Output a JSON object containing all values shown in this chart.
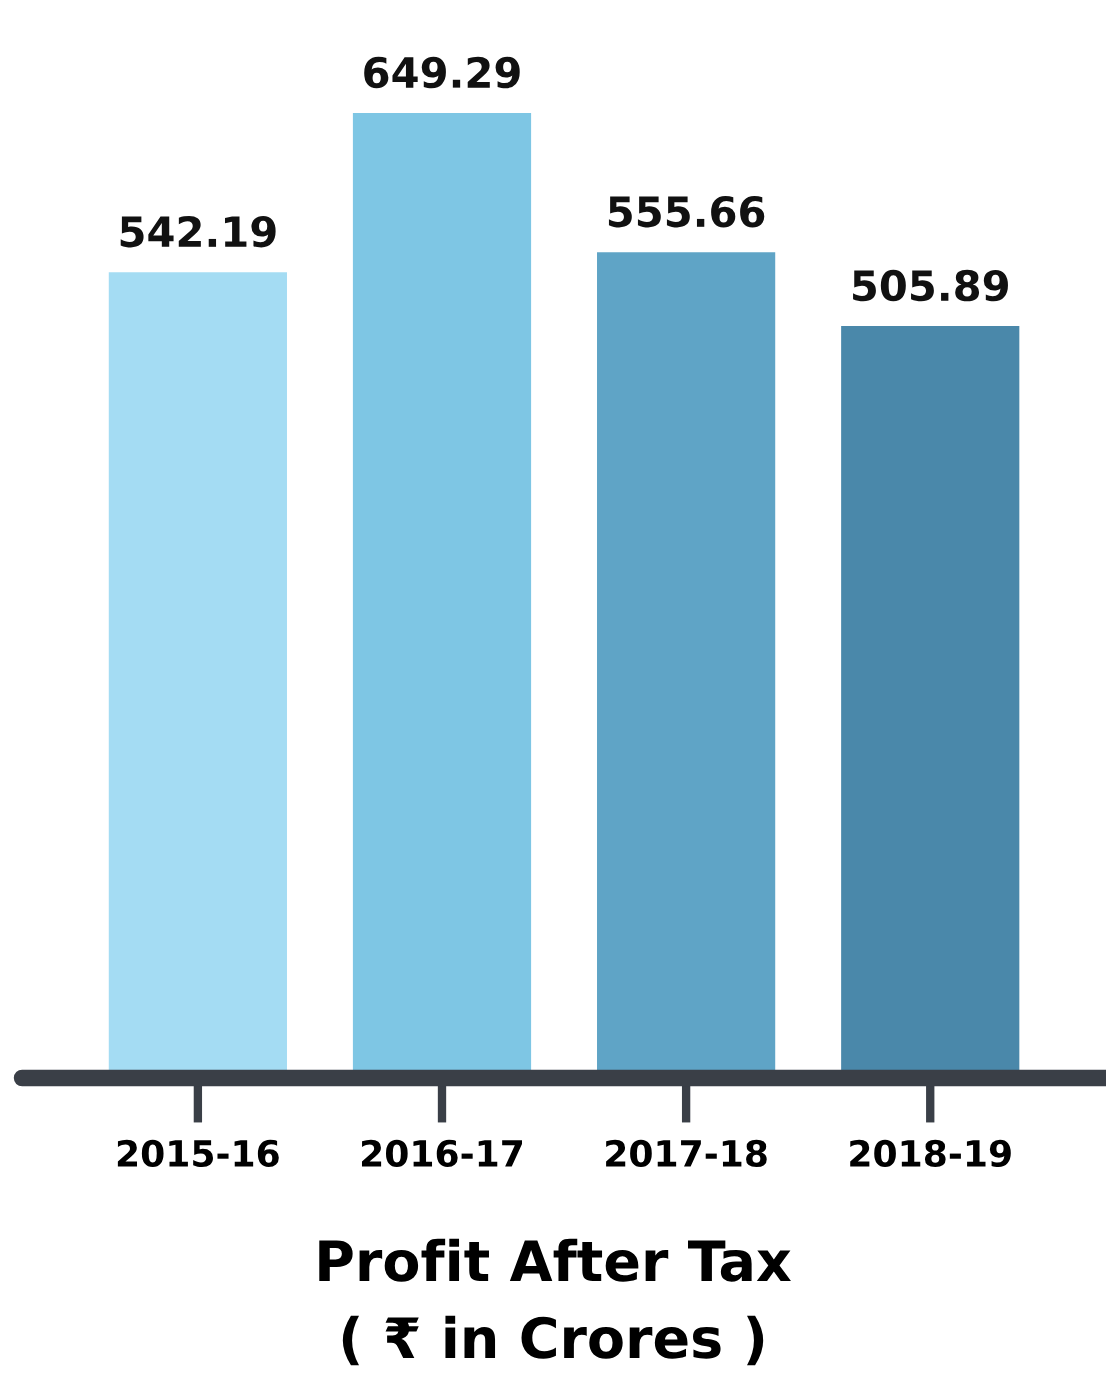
{
  "chart_data": {
    "type": "bar",
    "title": "Profit After Tax",
    "subtitle": "( ₹ in Crores )",
    "categories": [
      "2015-16",
      "2016-17",
      "2017-18",
      "2018-19"
    ],
    "values": [
      542.19,
      649.29,
      555.66,
      505.89
    ],
    "colors": [
      "#a4dcf3",
      "#7ec6e4",
      "#5fa4c6",
      "#4a88aa"
    ],
    "data_labels": true,
    "grid": false,
    "legend": false
  }
}
